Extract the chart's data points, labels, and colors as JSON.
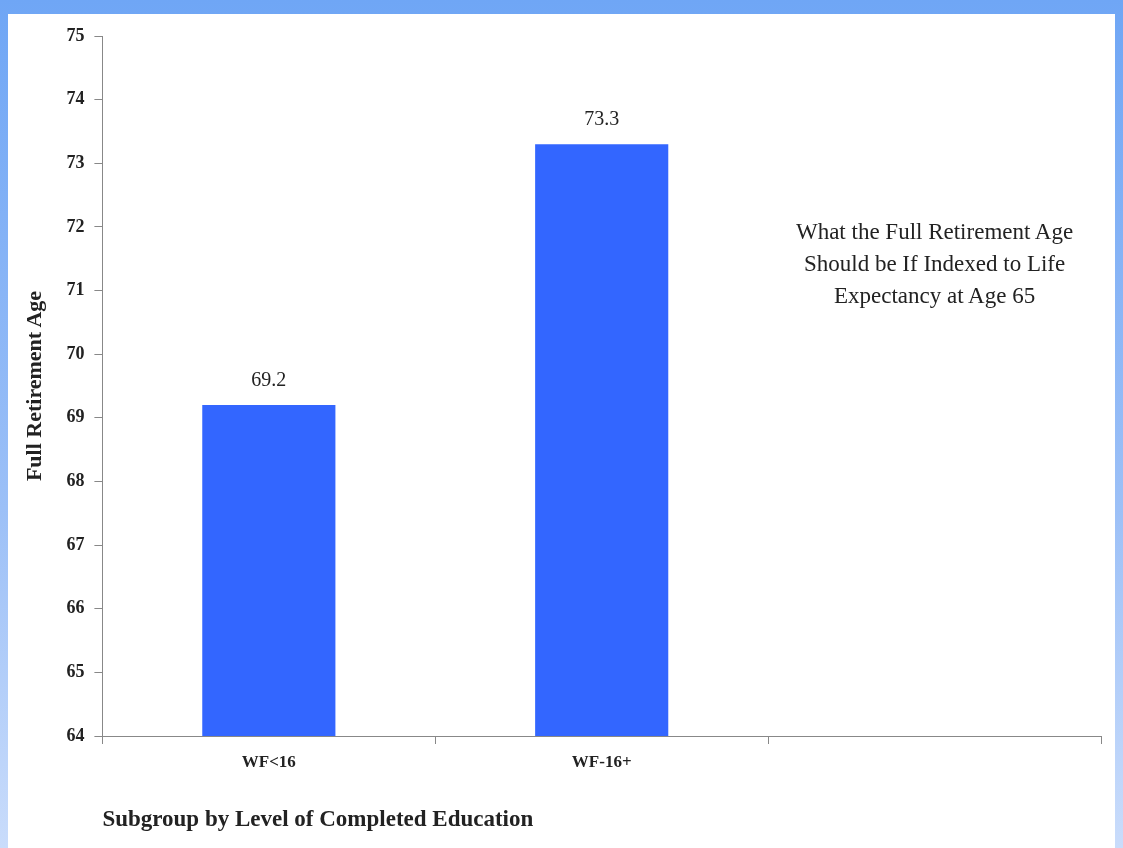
{
  "chart_data": {
    "type": "bar",
    "categories": [
      "WF<16",
      "WF-16+",
      null
    ],
    "values": [
      69.2,
      73.3,
      null
    ],
    "color": "#3366ff",
    "ylim": [
      64,
      75
    ],
    "yticks": [
      64,
      65,
      66,
      67,
      68,
      69,
      70,
      71,
      72,
      73,
      74,
      75
    ],
    "ylabel": "Full Retirement Age",
    "xlabel": "Subgroup by Level of Completed Education",
    "annotations": [
      "What the Full Retirement Age Should be If Indexed to Life Expectancy at Age 65"
    ],
    "data_labels": true,
    "grid": false,
    "legend": false
  }
}
